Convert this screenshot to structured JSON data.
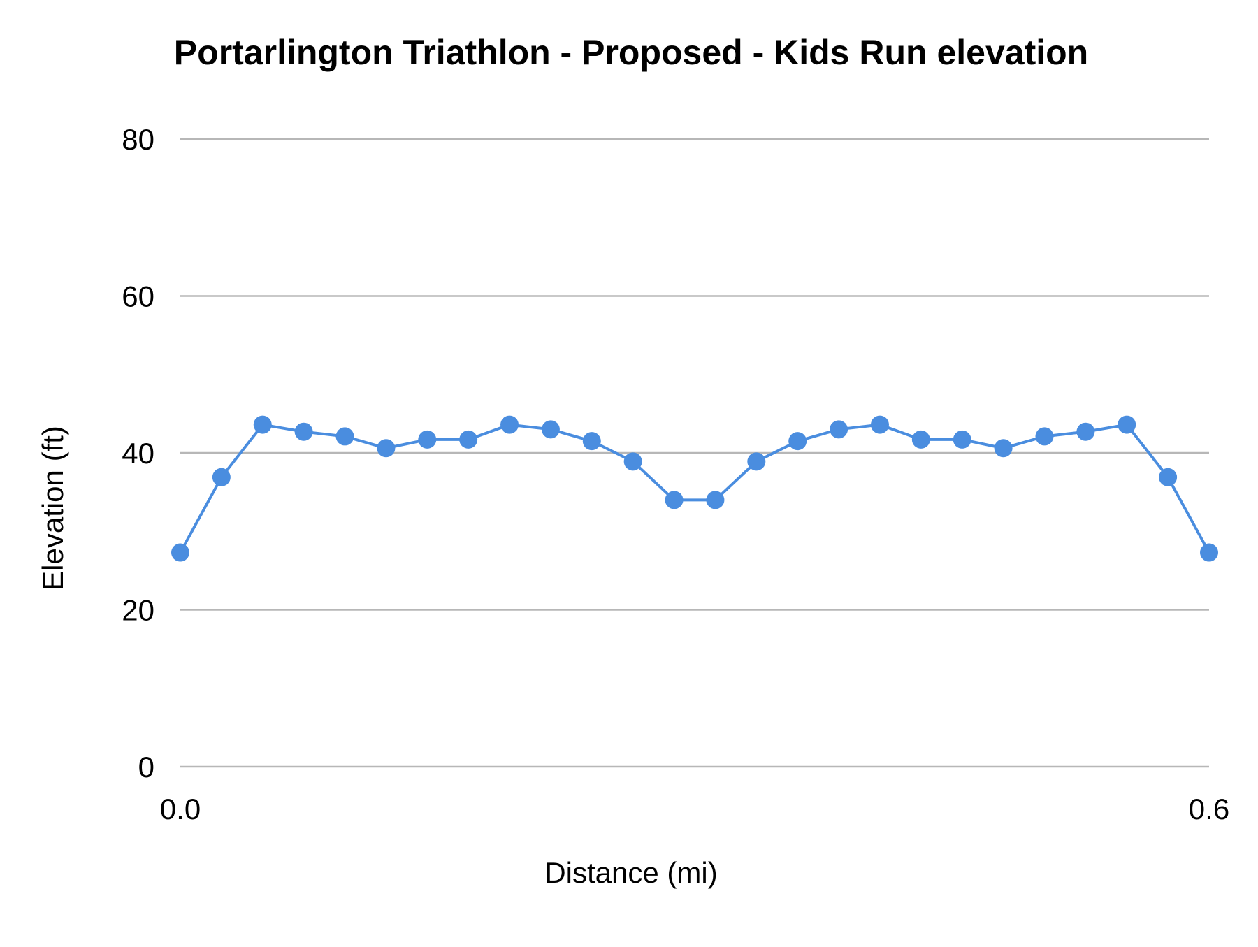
{
  "chart_data": {
    "type": "line",
    "title": "Portarlington Triathlon - Proposed  - Kids Run  elevation",
    "xlabel": "Distance (mi)",
    "ylabel": "Elevation (ft)",
    "xlim": [
      0.0,
      0.6
    ],
    "ylim": [
      0,
      80
    ],
    "x_ticks": [
      "0.0",
      "0.6"
    ],
    "y_ticks": [
      "0",
      "20",
      "40",
      "60",
      "80"
    ],
    "y_tick_values": [
      0,
      20,
      40,
      60,
      80
    ],
    "grid": true,
    "legend": "none",
    "series": [
      {
        "color": "#4a8ddf",
        "x": [
          0.0,
          0.024,
          0.048,
          0.072,
          0.096,
          0.12,
          0.144,
          0.168,
          0.192,
          0.216,
          0.24,
          0.264,
          0.288,
          0.312,
          0.336,
          0.36,
          0.384,
          0.408,
          0.432,
          0.456,
          0.48,
          0.504,
          0.528,
          0.552,
          0.576,
          0.6
        ],
        "y": [
          27.3,
          36.9,
          43.6,
          42.7,
          42.1,
          40.6,
          41.7,
          41.7,
          43.6,
          43.0,
          41.5,
          38.9,
          34.0,
          34.0,
          38.9,
          41.5,
          43.0,
          43.6,
          41.7,
          41.7,
          40.6,
          42.1,
          42.7,
          43.6,
          36.9,
          27.3
        ]
      }
    ]
  }
}
